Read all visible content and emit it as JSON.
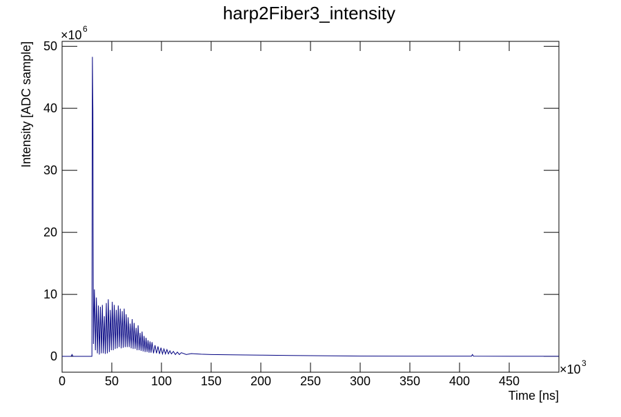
{
  "chart_data": {
    "type": "line",
    "title": "harp2Fiber3_intensity",
    "x_label": "Time [ns]",
    "y_label": "Intensity [ADC sample]",
    "y_scale_base": "×10",
    "y_scale_power": "6",
    "x_scale_base": "×10",
    "x_scale_power": "3",
    "xlim": [
      0,
      500
    ],
    "ylim": [
      -2.55,
      50.8
    ],
    "xticks": [
      0,
      50,
      100,
      150,
      200,
      250,
      300,
      350,
      400,
      450
    ],
    "yticks": [
      0,
      10,
      20,
      30,
      40,
      50
    ],
    "grid": false,
    "series": [
      {
        "color": "#000080",
        "x": [
          0,
          9,
          10,
          11,
          30,
          30.5,
          31,
          31.5,
          32.5,
          33.5,
          34.5,
          35.5,
          36.5,
          37.5,
          38.5,
          39.5,
          40.5,
          41.5,
          42.5,
          43.5,
          44.5,
          45.5,
          46.5,
          47.5,
          48.5,
          49.5,
          50.5,
          51.5,
          52.5,
          53.5,
          54.5,
          55.5,
          56.5,
          57.5,
          58.5,
          59.5,
          60.5,
          61.5,
          62.5,
          63.5,
          64.5,
          65.5,
          66.5,
          67.5,
          68.5,
          69.5,
          70.5,
          71.5,
          72.5,
          73.5,
          74.5,
          75.5,
          76.5,
          77.5,
          78.5,
          79.5,
          80.5,
          81.5,
          82.5,
          83.5,
          84.5,
          85.5,
          86.5,
          87.5,
          88.5,
          89.5,
          90.5,
          92,
          93.5,
          95,
          96.5,
          98,
          99.5,
          101,
          102.5,
          104,
          105.5,
          107,
          108.5,
          110,
          112,
          114,
          116,
          118,
          120,
          125,
          130,
          140,
          150,
          170,
          200,
          230,
          260,
          300,
          350,
          412,
          413,
          414,
          450,
          500
        ],
        "values": [
          0,
          0,
          0.3,
          0,
          0,
          48.3,
          39.5,
          2,
          10.8,
          1,
          9.5,
          0.5,
          8.2,
          0.3,
          8.0,
          0.5,
          8.3,
          0.5,
          6.5,
          0.4,
          8.6,
          0.5,
          9.2,
          0.7,
          7.5,
          1,
          8.8,
          1,
          8.3,
          1.2,
          7.5,
          1.3,
          8.2,
          1.5,
          7.7,
          1.3,
          7.3,
          1.4,
          7.7,
          1.5,
          6.8,
          1.5,
          6.3,
          1.5,
          5.3,
          1.3,
          6.0,
          1.2,
          5.4,
          1.2,
          4.6,
          1,
          5.0,
          1,
          3.8,
          0.9,
          4.0,
          0.8,
          3.3,
          0.7,
          3.0,
          0.7,
          2.6,
          0.6,
          2.4,
          0.6,
          2.3,
          0.5,
          1.8,
          0.5,
          1.6,
          0.4,
          1.4,
          0.4,
          1.2,
          0.4,
          1.1,
          0.4,
          0.9,
          0.4,
          0.8,
          0.3,
          0.7,
          0.3,
          0.6,
          0.3,
          0.45,
          0.35,
          0.3,
          0.25,
          0.2,
          0.15,
          0.1,
          0.05,
          0.03,
          0.03,
          0.3,
          0.03,
          0.02,
          0.02
        ]
      }
    ]
  }
}
